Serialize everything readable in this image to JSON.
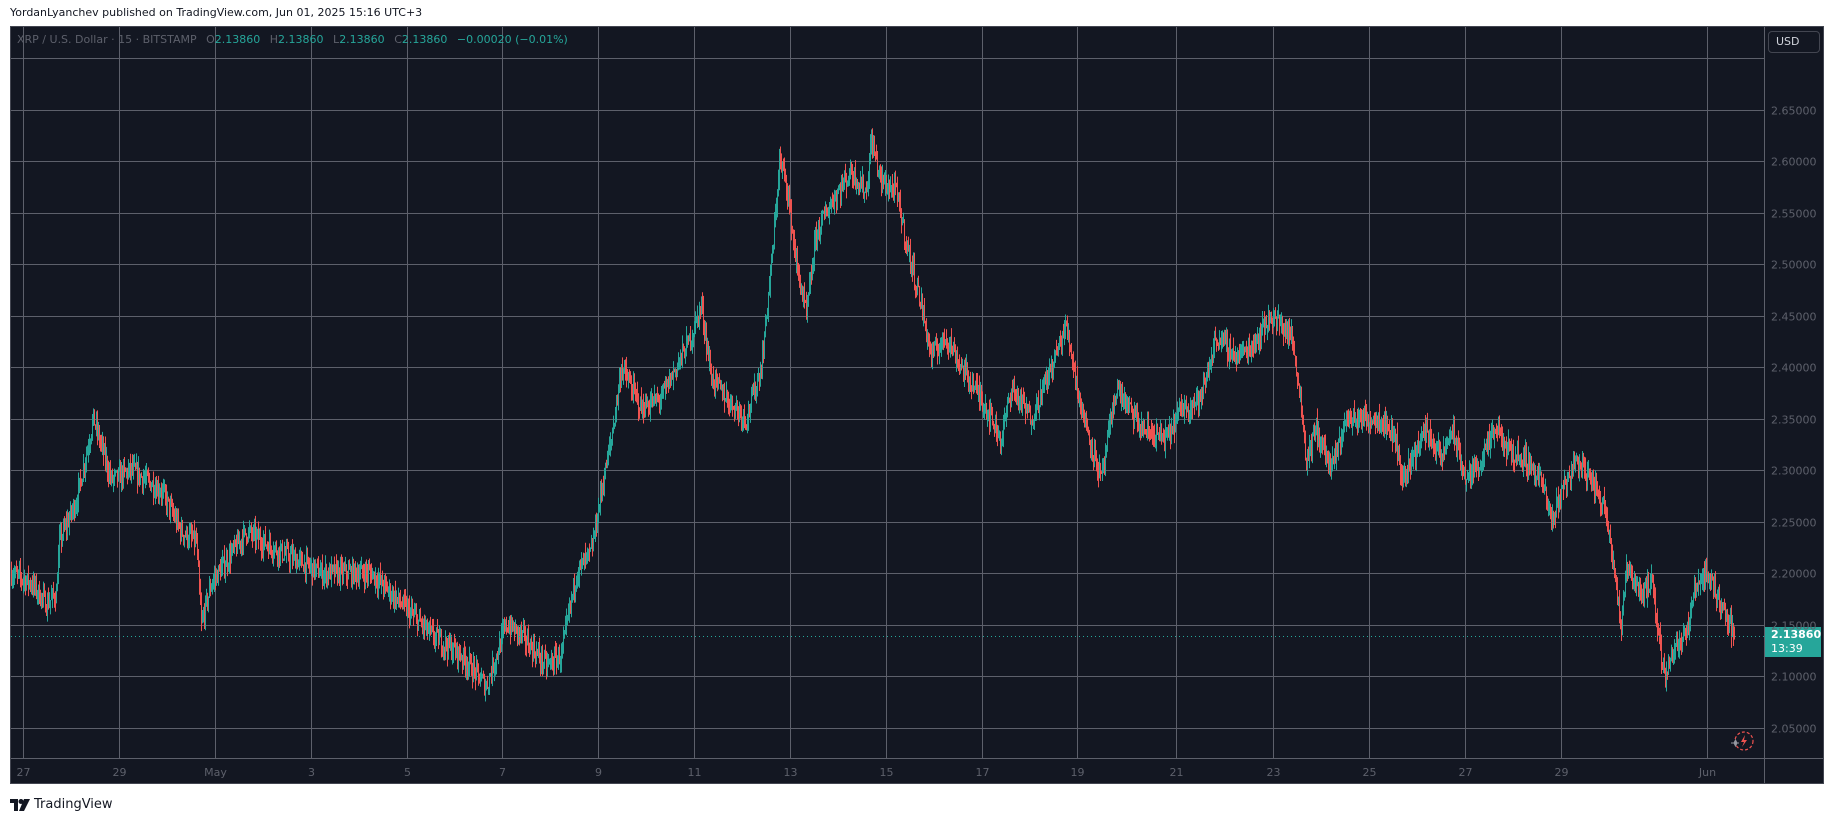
{
  "header": {
    "published_text": "YordanLyanchev published on TradingView.com, Jun 01, 2025 15:16 UTC+3"
  },
  "legend": {
    "symbol": "XRP / U.S. Dollar · 15 · BITSTAMP",
    "open_label": "O",
    "open": "2.13860",
    "high_label": "H",
    "high": "2.13860",
    "low_label": "L",
    "low": "2.13860",
    "close_label": "C",
    "close": "2.13860",
    "change": "−0.00020 (−0.01%)"
  },
  "price_axis": {
    "currency": "USD",
    "last_price": "2.13860",
    "countdown": "13:39"
  },
  "footer": {
    "brand": "TradingView"
  },
  "colors": {
    "up": "#26a69a",
    "down": "#ef5350",
    "background": "#131722",
    "grid": "#5d606b"
  },
  "chart_data": {
    "type": "candlestick",
    "title": "XRP / U.S. Dollar · 15 · BITSTAMP",
    "xlabel": "",
    "ylabel": "USD",
    "ylim": [
      2.03,
      2.72
    ],
    "y_ticks": [
      "2.65000",
      "2.60000",
      "2.55000",
      "2.50000",
      "2.45000",
      "2.40000",
      "2.35000",
      "2.30000",
      "2.25000",
      "2.20000",
      "2.15000",
      "2.10000",
      "2.05000"
    ],
    "x_ticks": [
      "27",
      "29",
      "May",
      "3",
      "5",
      "7",
      "9",
      "11",
      "13",
      "15",
      "17",
      "19",
      "21",
      "23",
      "25",
      "27",
      "29",
      "Jun"
    ],
    "last_price": 2.1386,
    "grid": true,
    "path_points": [
      [
        10,
        2.2
      ],
      [
        30,
        2.19
      ],
      [
        45,
        2.17
      ],
      [
        55,
        2.18
      ],
      [
        58,
        2.23
      ],
      [
        75,
        2.27
      ],
      [
        88,
        2.33
      ],
      [
        92,
        2.35
      ],
      [
        110,
        2.29
      ],
      [
        130,
        2.3
      ],
      [
        160,
        2.28
      ],
      [
        180,
        2.24
      ],
      [
        195,
        2.23
      ],
      [
        200,
        2.15
      ],
      [
        210,
        2.19
      ],
      [
        245,
        2.24
      ],
      [
        280,
        2.22
      ],
      [
        320,
        2.2
      ],
      [
        370,
        2.2
      ],
      [
        400,
        2.17
      ],
      [
        430,
        2.14
      ],
      [
        460,
        2.12
      ],
      [
        485,
        2.09
      ],
      [
        505,
        2.15
      ],
      [
        520,
        2.14
      ],
      [
        545,
        2.11
      ],
      [
        560,
        2.12
      ],
      [
        575,
        2.2
      ],
      [
        590,
        2.22
      ],
      [
        600,
        2.28
      ],
      [
        610,
        2.33
      ],
      [
        620,
        2.4
      ],
      [
        640,
        2.36
      ],
      [
        660,
        2.37
      ],
      [
        690,
        2.43
      ],
      [
        700,
        2.46
      ],
      [
        710,
        2.39
      ],
      [
        725,
        2.37
      ],
      [
        745,
        2.35
      ],
      [
        760,
        2.4
      ],
      [
        772,
        2.52
      ],
      [
        778,
        2.6
      ],
      [
        785,
        2.58
      ],
      [
        795,
        2.5
      ],
      [
        805,
        2.45
      ],
      [
        815,
        2.53
      ],
      [
        830,
        2.56
      ],
      [
        850,
        2.59
      ],
      [
        865,
        2.57
      ],
      [
        870,
        2.62
      ],
      [
        880,
        2.58
      ],
      [
        895,
        2.57
      ],
      [
        905,
        2.52
      ],
      [
        920,
        2.46
      ],
      [
        930,
        2.41
      ],
      [
        945,
        2.43
      ],
      [
        960,
        2.4
      ],
      [
        980,
        2.37
      ],
      [
        1000,
        2.33
      ],
      [
        1010,
        2.38
      ],
      [
        1030,
        2.35
      ],
      [
        1050,
        2.4
      ],
      [
        1065,
        2.44
      ],
      [
        1080,
        2.36
      ],
      [
        1100,
        2.29
      ],
      [
        1115,
        2.38
      ],
      [
        1140,
        2.34
      ],
      [
        1165,
        2.33
      ],
      [
        1180,
        2.36
      ],
      [
        1200,
        2.37
      ],
      [
        1215,
        2.43
      ],
      [
        1235,
        2.41
      ],
      [
        1250,
        2.42
      ],
      [
        1270,
        2.45
      ],
      [
        1290,
        2.43
      ],
      [
        1298,
        2.38
      ],
      [
        1305,
        2.31
      ],
      [
        1315,
        2.34
      ],
      [
        1330,
        2.3
      ],
      [
        1345,
        2.35
      ],
      [
        1365,
        2.35
      ],
      [
        1380,
        2.35
      ],
      [
        1395,
        2.33
      ],
      [
        1400,
        2.29
      ],
      [
        1410,
        2.31
      ],
      [
        1425,
        2.34
      ],
      [
        1440,
        2.31
      ],
      [
        1450,
        2.34
      ],
      [
        1465,
        2.29
      ],
      [
        1480,
        2.31
      ],
      [
        1495,
        2.34
      ],
      [
        1505,
        2.32
      ],
      [
        1525,
        2.31
      ],
      [
        1540,
        2.29
      ],
      [
        1550,
        2.25
      ],
      [
        1560,
        2.28
      ],
      [
        1575,
        2.31
      ],
      [
        1590,
        2.29
      ],
      [
        1605,
        2.26
      ],
      [
        1615,
        2.19
      ],
      [
        1620,
        2.14
      ],
      [
        1625,
        2.21
      ],
      [
        1640,
        2.18
      ],
      [
        1650,
        2.19
      ],
      [
        1660,
        2.12
      ],
      [
        1665,
        2.1
      ],
      [
        1672,
        2.13
      ],
      [
        1685,
        2.14
      ],
      [
        1695,
        2.19
      ],
      [
        1705,
        2.2
      ],
      [
        1715,
        2.18
      ],
      [
        1725,
        2.16
      ],
      [
        1733,
        2.1386
      ]
    ]
  }
}
